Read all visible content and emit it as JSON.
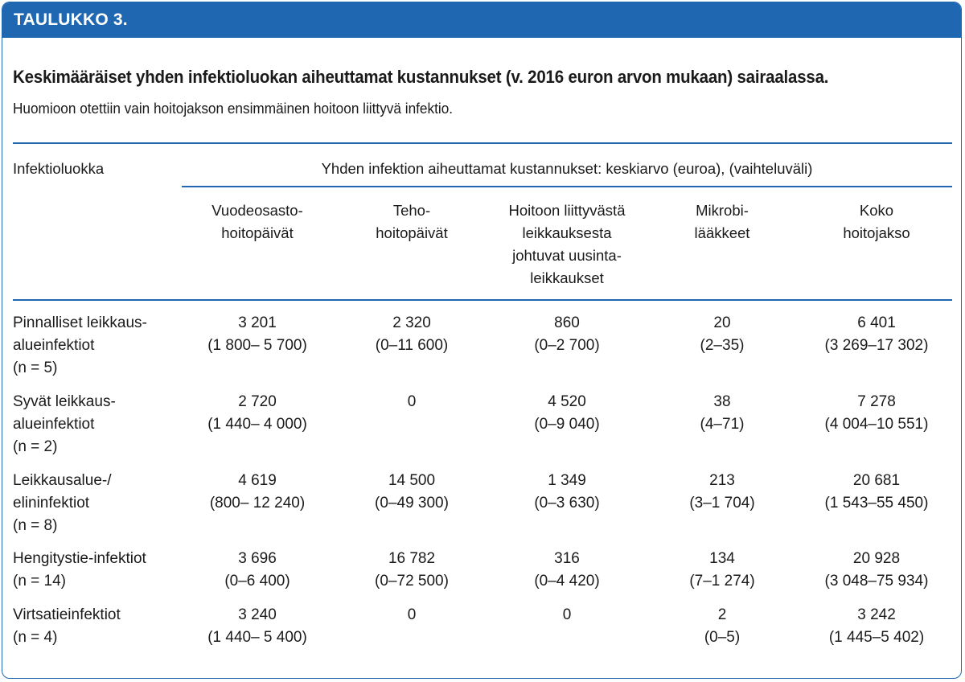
{
  "banner": "TAULUKKO 3.",
  "title": "Keskimääräiset yhden infektioluokan aiheuttamat kustannukset (v. 2016 euron arvon mukaan) sairaalassa.",
  "subtitle": "Huomioon otettiin vain hoitojakson ensimmäinen hoitoon liittyvä infektio.",
  "table": {
    "row_header": "Infektioluokka",
    "group_header": "Yhden infektion aiheuttamat kustannukset: keskiarvo (euroa), (vaihteluväli)",
    "columns": [
      [
        "Vuodeosasto-",
        "hoitopäivät"
      ],
      [
        "Teho-",
        "hoitopäivät"
      ],
      [
        "Hoitoon liittyvästä",
        "leikkauksesta",
        "johtuvat uusinta-",
        "leikkaukset"
      ],
      [
        "Mikrobi-",
        "lääkkeet"
      ],
      [
        "Koko",
        "hoitojakso"
      ]
    ],
    "rows": [
      {
        "label": [
          "Pinnalliset leikkaus-",
          "alueinfektiot",
          "(n = 5)"
        ],
        "cells": [
          [
            "3 201",
            "(1 800– 5 700)"
          ],
          [
            "2 320",
            "(0–11 600)"
          ],
          [
            "860",
            "(0–2 700)"
          ],
          [
            "20",
            "(2–35)"
          ],
          [
            "6 401",
            "(3 269–17 302)"
          ]
        ]
      },
      {
        "label": [
          "Syvät leikkaus-",
          "alueinfektiot",
          "(n = 2)"
        ],
        "cells": [
          [
            "2 720",
            "(1 440– 4 000)"
          ],
          [
            "0",
            ""
          ],
          [
            "4 520",
            "(0–9 040)"
          ],
          [
            "38",
            "(4–71)"
          ],
          [
            "7 278",
            "(4 004–10 551)"
          ]
        ]
      },
      {
        "label": [
          "Leikkausalue-/",
          "elininfektiot",
          "(n = 8)"
        ],
        "cells": [
          [
            "4 619",
            "(800– 12 240)"
          ],
          [
            "14 500",
            "(0–49 300)"
          ],
          [
            "1 349",
            "(0–3 630)"
          ],
          [
            "213",
            "(3–1 704)"
          ],
          [
            "20 681",
            "(1 543–55 450)"
          ]
        ]
      },
      {
        "label": [
          "Hengitystie-infektiot",
          "(n = 14)"
        ],
        "cells": [
          [
            "3 696",
            "(0–6 400)"
          ],
          [
            "16 782",
            "(0–72 500)"
          ],
          [
            "316",
            "(0–4 420)"
          ],
          [
            "134",
            "(7–1 274)"
          ],
          [
            "20 928",
            "(3 048–75 934)"
          ]
        ]
      },
      {
        "label": [
          "Virtsatieinfektiot",
          "(n = 4)"
        ],
        "cells": [
          [
            "3 240",
            "(1 440– 5 400)"
          ],
          [
            "0",
            ""
          ],
          [
            "0",
            ""
          ],
          [
            "2",
            "(0–5)"
          ],
          [
            "3 242",
            "(1 445–5 402)"
          ]
        ]
      }
    ]
  }
}
